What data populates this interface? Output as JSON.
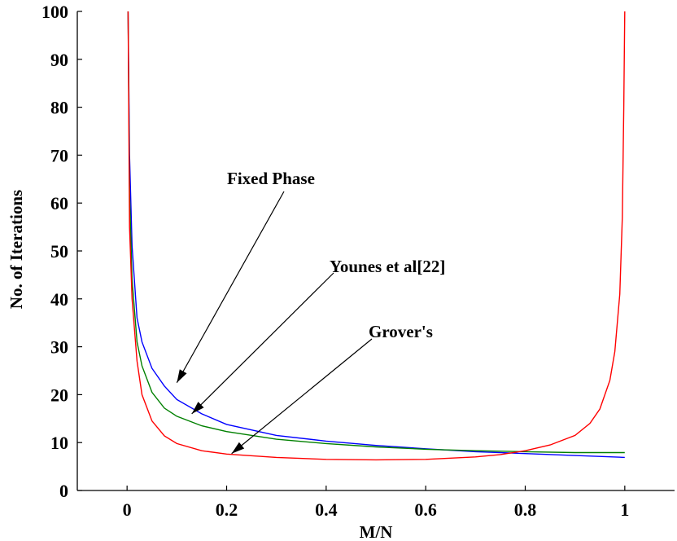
{
  "chart_data": {
    "type": "line",
    "xlabel": "M/N",
    "ylabel": "No. of Iterations",
    "xlim": [
      -0.1,
      1.1
    ],
    "ylim": [
      0,
      100
    ],
    "xticks": [
      0,
      0.2,
      0.4,
      0.6,
      0.8,
      1
    ],
    "xtick_labels": [
      "0",
      "0.2",
      "0.4",
      "0.6",
      "0.8",
      "1"
    ],
    "yticks": [
      0,
      10,
      20,
      30,
      40,
      50,
      60,
      70,
      80,
      90,
      100
    ],
    "ytick_labels": [
      "0",
      "10",
      "20",
      "30",
      "40",
      "50",
      "60",
      "70",
      "80",
      "90",
      "100"
    ],
    "grid": false,
    "series": [
      {
        "color": "#0000ff",
        "x": [
          0.002,
          0.005,
          0.01,
          0.02,
          0.03,
          0.05,
          0.075,
          0.1,
          0.15,
          0.2,
          0.3,
          0.4,
          0.5,
          0.6,
          0.7,
          0.8,
          0.9,
          1.0
        ],
        "y": [
          100,
          70,
          51,
          36,
          31,
          25.5,
          21.8,
          19,
          16,
          13.8,
          11.5,
          10.3,
          9.4,
          8.7,
          8.1,
          7.7,
          7.3,
          6.9
        ]
      },
      {
        "color": "#008000",
        "x": [
          0.002,
          0.005,
          0.01,
          0.02,
          0.03,
          0.05,
          0.075,
          0.1,
          0.15,
          0.2,
          0.3,
          0.4,
          0.5,
          0.6,
          0.7,
          0.8,
          0.9,
          1.0
        ],
        "y": [
          100,
          62,
          44,
          31,
          26,
          20.5,
          17.2,
          15.5,
          13.5,
          12.3,
          10.7,
          9.8,
          9.1,
          8.6,
          8.3,
          8.1,
          7.9,
          7.9
        ]
      },
      {
        "color": "#ff0000",
        "x": [
          0.002,
          0.005,
          0.01,
          0.02,
          0.03,
          0.05,
          0.075,
          0.1,
          0.15,
          0.2,
          0.3,
          0.4,
          0.5,
          0.6,
          0.7,
          0.75,
          0.8,
          0.85,
          0.9,
          0.93,
          0.95,
          0.97,
          0.98,
          0.99,
          0.995,
          0.998,
          1.0
        ],
        "y": [
          100,
          55,
          40,
          27,
          20,
          14.5,
          11.4,
          9.8,
          8.3,
          7.6,
          6.9,
          6.5,
          6.4,
          6.5,
          7.0,
          7.5,
          8.3,
          9.5,
          11.5,
          14,
          17,
          23,
          29,
          41,
          57,
          80,
          100
        ]
      }
    ],
    "annotations": [
      {
        "text": "Fixed Phase",
        "target": [
          0.1,
          22.5
        ]
      },
      {
        "text": "Younes et al[22]",
        "target": [
          0.13,
          16
        ]
      },
      {
        "text": "Grover's",
        "target": [
          0.21,
          7.7
        ]
      }
    ]
  }
}
